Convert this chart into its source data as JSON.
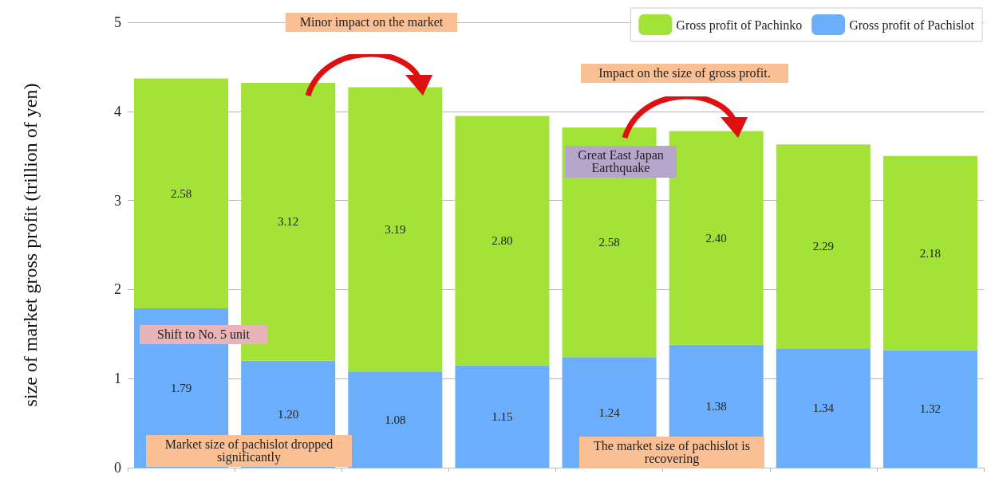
{
  "chart_data": {
    "type": "bar",
    "stacked": true,
    "ylabel": "size of market gross profit (trillion of yen)",
    "categories": [
      null,
      null,
      null,
      null,
      null,
      null,
      null,
      null
    ],
    "series": [
      {
        "name": "Gross profit of Pachislot",
        "color": "#6aaefc",
        "values": [
          1.79,
          1.2,
          1.08,
          1.15,
          1.24,
          1.38,
          1.34,
          1.32
        ],
        "value_labels": [
          "1.79",
          "1.20",
          "1.08",
          "1.15",
          "1.24",
          "1.38",
          "1.34",
          "1.32"
        ]
      },
      {
        "name": "Gross profit of Pachinko",
        "color": "#a3e236",
        "values": [
          2.58,
          3.12,
          3.19,
          2.8,
          2.58,
          2.4,
          2.29,
          2.18
        ],
        "value_labels": [
          "2.58",
          "3.12",
          "3.19",
          "2.80",
          "2.58",
          "2.40",
          "2.29",
          "2.18"
        ]
      }
    ],
    "ylim": [
      0,
      5
    ],
    "yticks": [
      0,
      1,
      2,
      3,
      4,
      5
    ],
    "grid": "y",
    "legend": "top right",
    "annotations": [
      "Minor impact on the market",
      "Impact on the size of gross profit.",
      "Great East Japan Earthquake",
      "Shift to No. 5 unit",
      "Market size of pachislot dropped significantly",
      "The market size of pachislot is recovering"
    ]
  }
}
